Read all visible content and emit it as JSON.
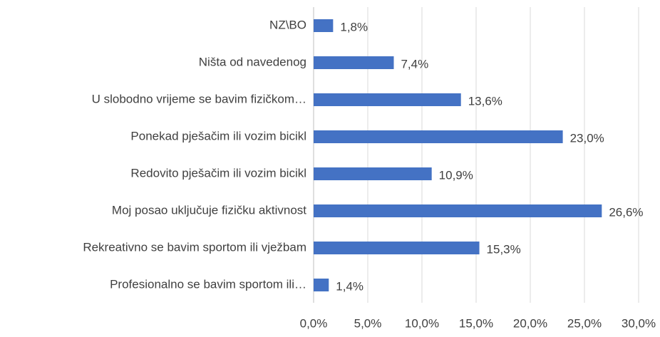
{
  "chart_data": {
    "type": "hbar",
    "categories": [
      "NZ\\BO",
      "Ništa od navedenog",
      "U slobodno vrijeme se bavim fizičkom…",
      "Ponekad pješačim ili vozim bicikl",
      "Redovito pješačim ili vozim bicikl",
      "Moj posao uključuje fizičku aktivnost",
      "Rekreativno se bavim sportom ili vježbam",
      "Profesionalno se bavim sportom ili…"
    ],
    "values": [
      1.8,
      7.4,
      13.6,
      23.0,
      10.9,
      26.6,
      15.3,
      1.4
    ],
    "value_labels": [
      "1,8%",
      "7,4%",
      "13,6%",
      "23,0%",
      "10,9%",
      "26,6%",
      "15,3%",
      "1,4%"
    ],
    "color": "#4472c4",
    "xlim": [
      0,
      30
    ],
    "xticks": [
      {
        "value": 0,
        "label": "0,0%"
      },
      {
        "value": 5,
        "label": "5,0%"
      },
      {
        "value": 10,
        "label": "10,0%"
      },
      {
        "value": 15,
        "label": "15,0%"
      },
      {
        "value": 20,
        "label": "20,0%"
      },
      {
        "value": 25,
        "label": "25,0%"
      },
      {
        "value": 30,
        "label": "30,0%"
      }
    ],
    "grid": true
  }
}
